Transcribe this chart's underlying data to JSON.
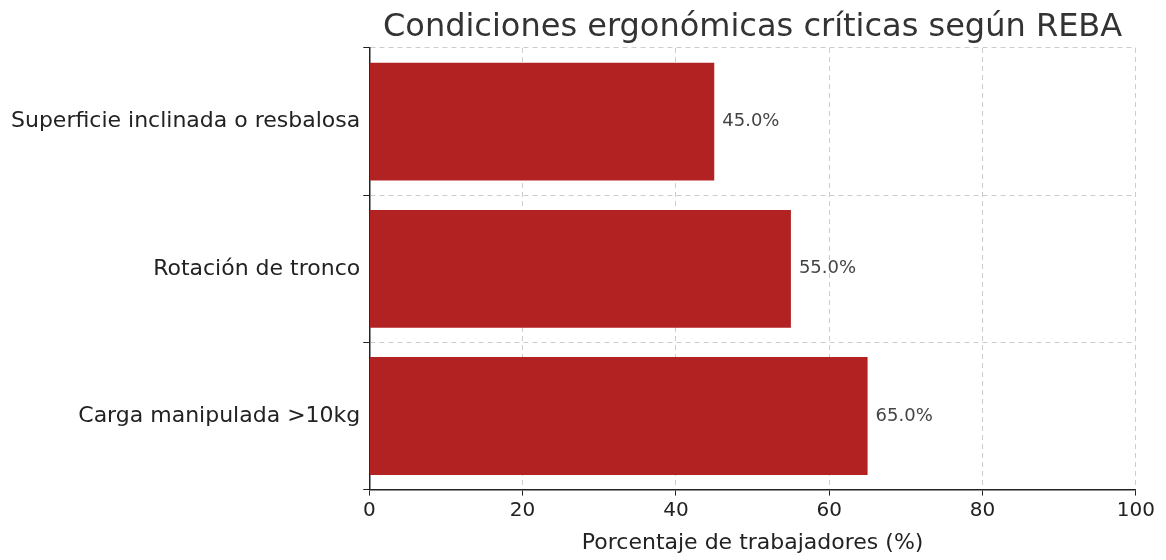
{
  "chart_data": {
    "type": "bar",
    "orientation": "horizontal",
    "title": "Condiciones ergonómicas críticas según REBA",
    "xlabel": "Porcentaje de trabajadores (%)",
    "categories": [
      "Superficie inclinada o resbalosa",
      "Rotación de tronco",
      "Carga manipulada >10kg"
    ],
    "values": [
      45,
      55,
      65
    ],
    "value_labels": [
      "45.0%",
      "55.0%",
      "65.0%"
    ],
    "color": "#b22222",
    "xlim": [
      0,
      100
    ],
    "xticks": [
      0,
      20,
      40,
      60,
      80,
      100
    ],
    "grid": true,
    "legend": false
  }
}
